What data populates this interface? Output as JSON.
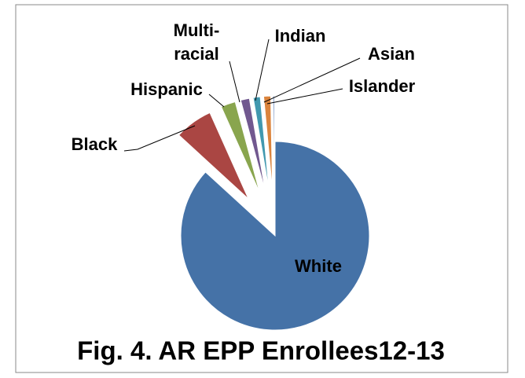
{
  "chart_data": {
    "type": "pie",
    "title": "Fig. 4.  AR EPP Enrollees12-13",
    "categories": [
      "White",
      "Black",
      "Hispanic",
      "Multi-racial",
      "Indian",
      "Asian",
      "Islander"
    ],
    "values": [
      86.8,
      6.5,
      2.5,
      1.5,
      1.2,
      1.2,
      0.3
    ],
    "colors": [
      "#4572a7",
      "#aa4643",
      "#89a54e",
      "#71588f",
      "#4198af",
      "#db843d",
      "#93a9cf"
    ]
  }
}
